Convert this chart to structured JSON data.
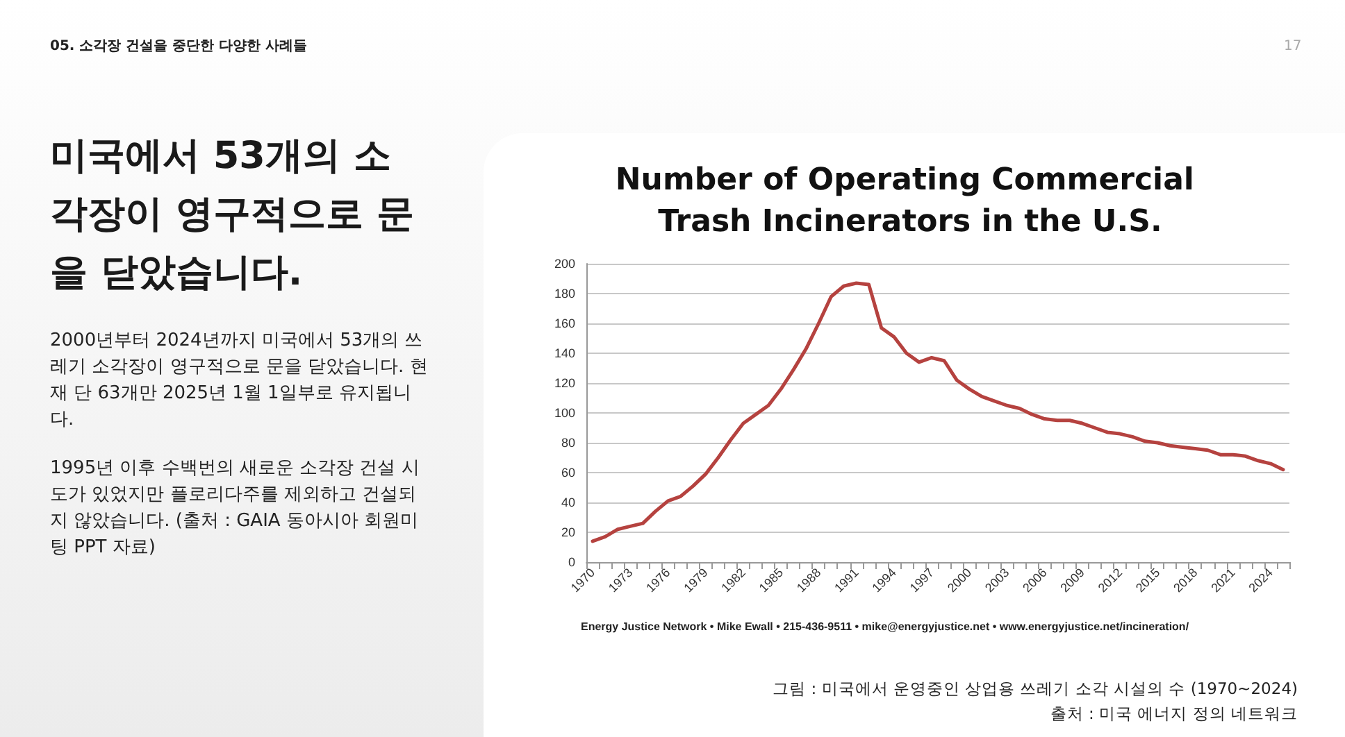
{
  "chart_data": {
    "type": "line",
    "title": "Number of Operating Commercial Trash Incinerators in the U.S.",
    "categories": [
      "1970",
      null,
      null,
      "1973",
      null,
      null,
      "1976",
      null,
      null,
      "1979",
      null,
      null,
      "1982",
      null,
      null,
      "1985",
      null,
      null,
      "1988",
      null,
      null,
      "1991",
      null,
      null,
      "1994",
      null,
      null,
      "1997",
      null,
      null,
      "2000",
      null,
      null,
      "2003",
      null,
      null,
      "2006",
      null,
      null,
      "2009",
      null,
      null,
      "2012",
      null,
      null,
      "2015",
      null,
      null,
      "2018",
      null,
      null,
      "2021",
      null,
      null,
      "2024",
      null
    ],
    "series": [
      {
        "color": "#b5423f",
        "values": [
          14,
          17,
          22,
          24,
          26,
          34,
          41,
          44,
          51,
          59,
          70,
          82,
          93,
          99,
          105,
          116,
          129,
          143,
          160,
          178,
          185,
          187,
          186,
          157,
          151,
          140,
          134,
          137,
          135,
          122,
          116,
          111,
          108,
          105,
          103,
          99,
          96,
          95,
          95,
          93,
          90,
          87,
          86,
          84,
          81,
          80,
          78,
          77,
          76,
          75,
          72,
          72,
          71,
          68,
          66,
          62
        ]
      }
    ],
    "ylim": [
      0,
      200
    ],
    "yticks": [
      0,
      20,
      40,
      60,
      80,
      100,
      120,
      140,
      160,
      180,
      200
    ],
    "grid": "y",
    "marker": "none",
    "line_style": "solid",
    "annotations": [
      "05. 소각장 건설을 중단한 다양한 사례들",
      "17",
      "미국에서 53개의 소각장이 영구적으로 문을 닫았습니다.",
      "2000년부터 2024년까지 미국에서 53개의 쓰레기 소각장이 영구적으로 문을 닫았습니다. 현재 단 63개만 2025년 1월 1일부로 유지됩니다.",
      "1995년 이후 수백번의 새로운 소각장 건설 시도가 있었지만 플로리다주를 제외하고 건설되지 않았습니다. (출처 : GAIA 동아시아 회원미팅 PPT 자료)",
      "Energy Justice Network • Mike Ewall • 215-436-9511 • mike@energyjustice.net • www.energyjustice.net/incineration/",
      "그림 : 미국에서 운영중인 상업용 쓰레기 소각 시설의 수 (1970~2024)",
      "출처 : 미국 에너지 정의 네트워크"
    ]
  }
}
